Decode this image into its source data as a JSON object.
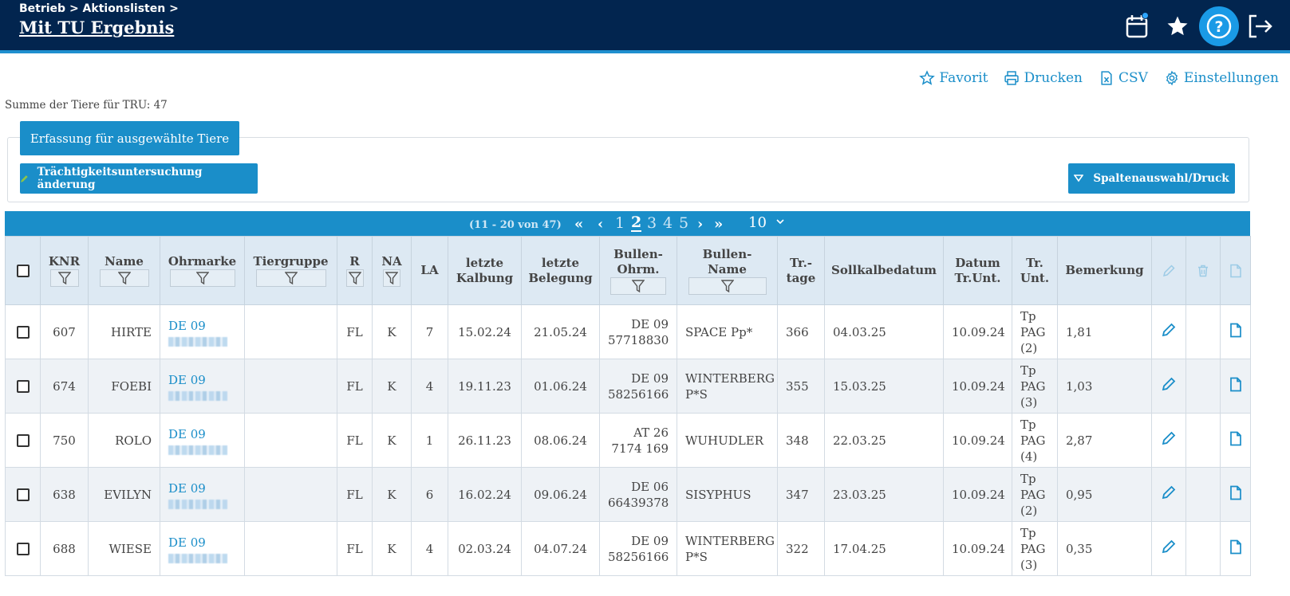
{
  "header": {
    "breadcrumb": "Betrieb > Aktionslisten >",
    "title": "Mit TU Ergebnis"
  },
  "actions": {
    "favorit": "Favorit",
    "drucken": "Drucken",
    "csv": "CSV",
    "einstellungen": "Einstellungen"
  },
  "summary": "Summe der Tiere für TRU: 47",
  "buttons": {
    "erfassung": "Erfassung für ausgewählte Tiere",
    "tu_aenderung": "Trächtigkeitsuntersuchung änderung",
    "spaltenauswahl": "Spaltenauswahl/Druck"
  },
  "pagination": {
    "range": "(11 - 20 von 47)",
    "pages": [
      "1",
      "2",
      "3",
      "4",
      "5"
    ],
    "current_page": "2",
    "page_size": "10"
  },
  "table": {
    "headers": {
      "knr": "KNR",
      "name": "Name",
      "ohrmarke": "Ohrmarke",
      "tiergruppe": "Tiergruppe",
      "r": "R",
      "na": "NA",
      "la": "LA",
      "letzte_kalbung_1": "letzte",
      "letzte_kalbung_2": "Kalbung",
      "letzte_belegung_1": "letzte",
      "letzte_belegung_2": "Belegung",
      "bullen_ohrm_1": "Bullen-",
      "bullen_ohrm_2": "Ohrm.",
      "bullen_name_1": "Bullen-",
      "bullen_name_2": "Name",
      "trtage_1": "Tr.-",
      "trtage_2": "tage",
      "sollkalbedatum": "Sollkalbedatum",
      "datum_trunt_1": "Datum",
      "datum_trunt_2": "Tr.Unt.",
      "trunt_1": "Tr.",
      "trunt_2": "Unt.",
      "bemerkung": "Bemerkung"
    },
    "rows": [
      {
        "knr": "607",
        "name": "HIRTE",
        "ohrmarke": "DE 09",
        "r": "FL",
        "na": "K",
        "la": "7",
        "kalbung": "15.02.24",
        "belegung": "21.05.24",
        "bullen_ohrm_1": "DE 09",
        "bullen_ohrm_2": "57718830",
        "bullen_name_1": "SPACE Pp*",
        "bullen_name_2": "",
        "trtage": "366",
        "sollkalbe": "04.03.25",
        "datum_trunt": "10.09.24",
        "trunt_1": "Tp",
        "trunt_2": "PAG",
        "trunt_3": "(2)",
        "bemerkung": "1,81"
      },
      {
        "knr": "674",
        "name": "FOEBI",
        "ohrmarke": "DE 09",
        "r": "FL",
        "na": "K",
        "la": "4",
        "kalbung": "19.11.23",
        "belegung": "01.06.24",
        "bullen_ohrm_1": "DE 09",
        "bullen_ohrm_2": "58256166",
        "bullen_name_1": "WINTERBERG",
        "bullen_name_2": "P*S",
        "trtage": "355",
        "sollkalbe": "15.03.25",
        "datum_trunt": "10.09.24",
        "trunt_1": "Tp",
        "trunt_2": "PAG",
        "trunt_3": "(3)",
        "bemerkung": "1,03"
      },
      {
        "knr": "750",
        "name": "ROLO",
        "ohrmarke": "DE 09",
        "r": "FL",
        "na": "K",
        "la": "1",
        "kalbung": "26.11.23",
        "belegung": "08.06.24",
        "bullen_ohrm_1": "AT 26",
        "bullen_ohrm_2": "7174 169",
        "bullen_name_1": "WUHUDLER",
        "bullen_name_2": "",
        "trtage": "348",
        "sollkalbe": "22.03.25",
        "datum_trunt": "10.09.24",
        "trunt_1": "Tp",
        "trunt_2": "PAG",
        "trunt_3": "(4)",
        "bemerkung": "2,87"
      },
      {
        "knr": "638",
        "name": "EVILYN",
        "ohrmarke": "DE 09",
        "r": "FL",
        "na": "K",
        "la": "6",
        "kalbung": "16.02.24",
        "belegung": "09.06.24",
        "bullen_ohrm_1": "DE 06",
        "bullen_ohrm_2": "66439378",
        "bullen_name_1": "SISYPHUS",
        "bullen_name_2": "",
        "trtage": "347",
        "sollkalbe": "23.03.25",
        "datum_trunt": "10.09.24",
        "trunt_1": "Tp",
        "trunt_2": "PAG",
        "trunt_3": "(2)",
        "bemerkung": "0,95"
      },
      {
        "knr": "688",
        "name": "WIESE",
        "ohrmarke": "DE 09",
        "r": "FL",
        "na": "K",
        "la": "4",
        "kalbung": "02.03.24",
        "belegung": "04.07.24",
        "bullen_ohrm_1": "DE 09",
        "bullen_ohrm_2": "58256166",
        "bullen_name_1": "WINTERBERG",
        "bullen_name_2": "P*S",
        "trtage": "322",
        "sollkalbe": "17.04.25",
        "datum_trunt": "10.09.24",
        "trunt_1": "Tp",
        "trunt_2": "PAG",
        "trunt_3": "(3)",
        "bemerkung": "0,35"
      }
    ]
  }
}
